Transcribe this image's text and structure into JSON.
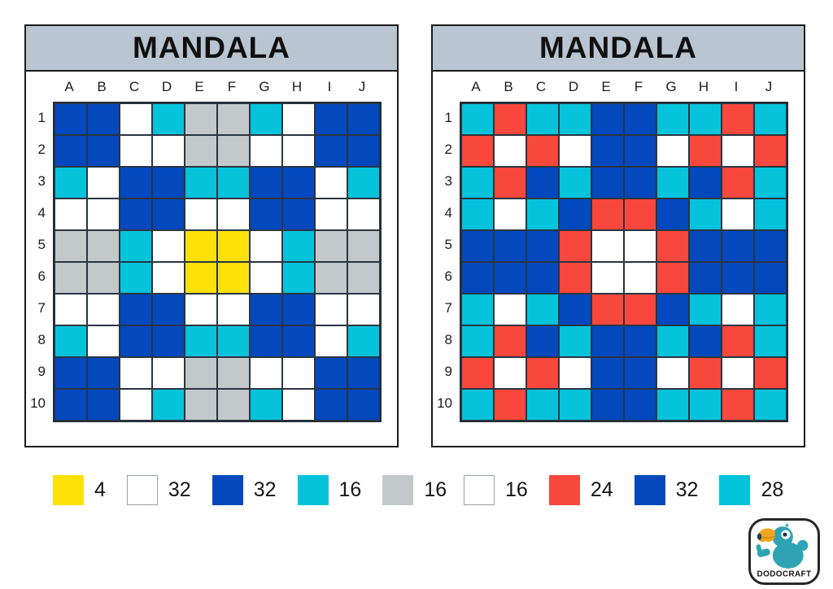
{
  "palette": {
    "B": "#0448be",
    "C": "#06c3dc",
    "W": "#ffffff",
    "G": "#c3c8cb",
    "Y": "#ffe10a",
    "R": "#f8473c"
  },
  "color_names": {
    "B": "dark-blue",
    "C": "cyan",
    "W": "white",
    "G": "gray",
    "Y": "yellow",
    "R": "red"
  },
  "grid_line_color": "#2a3540",
  "title_bar_color": "#b9c5d0",
  "panels": [
    {
      "id": "left",
      "title": "MANDALA",
      "columns": [
        "A",
        "B",
        "C",
        "D",
        "E",
        "F",
        "G",
        "H",
        "I",
        "J"
      ],
      "rows": [
        "1",
        "2",
        "3",
        "4",
        "5",
        "6",
        "7",
        "8",
        "9",
        "10"
      ],
      "grid": [
        [
          "B",
          "B",
          "W",
          "C",
          "G",
          "G",
          "C",
          "W",
          "B",
          "B"
        ],
        [
          "B",
          "B",
          "W",
          "W",
          "G",
          "G",
          "W",
          "W",
          "B",
          "B"
        ],
        [
          "C",
          "W",
          "B",
          "B",
          "C",
          "C",
          "B",
          "B",
          "W",
          "C"
        ],
        [
          "W",
          "W",
          "B",
          "B",
          "W",
          "W",
          "B",
          "B",
          "W",
          "W"
        ],
        [
          "G",
          "G",
          "C",
          "W",
          "Y",
          "Y",
          "W",
          "C",
          "G",
          "G"
        ],
        [
          "G",
          "G",
          "C",
          "W",
          "Y",
          "Y",
          "W",
          "C",
          "G",
          "G"
        ],
        [
          "W",
          "W",
          "B",
          "B",
          "W",
          "W",
          "B",
          "B",
          "W",
          "W"
        ],
        [
          "C",
          "W",
          "B",
          "B",
          "C",
          "C",
          "B",
          "B",
          "W",
          "C"
        ],
        [
          "B",
          "B",
          "W",
          "W",
          "G",
          "G",
          "W",
          "W",
          "B",
          "B"
        ],
        [
          "B",
          "B",
          "W",
          "C",
          "G",
          "G",
          "C",
          "W",
          "B",
          "B"
        ]
      ],
      "legend": [
        {
          "color": "Y",
          "count": "4"
        },
        {
          "color": "W",
          "count": "32"
        },
        {
          "color": "B",
          "count": "32"
        },
        {
          "color": "C",
          "count": "16"
        },
        {
          "color": "G",
          "count": "16"
        }
      ]
    },
    {
      "id": "right",
      "title": "MANDALA",
      "columns": [
        "A",
        "B",
        "C",
        "D",
        "E",
        "F",
        "G",
        "H",
        "I",
        "J"
      ],
      "rows": [
        "1",
        "2",
        "3",
        "4",
        "5",
        "6",
        "7",
        "8",
        "9",
        "10"
      ],
      "grid": [
        [
          "C",
          "R",
          "C",
          "C",
          "B",
          "B",
          "C",
          "C",
          "R",
          "C"
        ],
        [
          "R",
          "W",
          "R",
          "W",
          "B",
          "B",
          "W",
          "R",
          "W",
          "R"
        ],
        [
          "C",
          "R",
          "B",
          "C",
          "B",
          "B",
          "C",
          "B",
          "R",
          "C"
        ],
        [
          "C",
          "W",
          "C",
          "B",
          "R",
          "R",
          "B",
          "C",
          "W",
          "C"
        ],
        [
          "B",
          "B",
          "B",
          "R",
          "W",
          "W",
          "R",
          "B",
          "B",
          "B"
        ],
        [
          "B",
          "B",
          "B",
          "R",
          "W",
          "W",
          "R",
          "B",
          "B",
          "B"
        ],
        [
          "C",
          "W",
          "C",
          "B",
          "R",
          "R",
          "B",
          "C",
          "W",
          "C"
        ],
        [
          "C",
          "R",
          "B",
          "C",
          "B",
          "B",
          "C",
          "B",
          "R",
          "C"
        ],
        [
          "R",
          "W",
          "R",
          "W",
          "B",
          "B",
          "W",
          "R",
          "W",
          "R"
        ],
        [
          "C",
          "R",
          "C",
          "C",
          "B",
          "B",
          "C",
          "C",
          "R",
          "C"
        ]
      ],
      "legend": [
        {
          "color": "W",
          "count": "16"
        },
        {
          "color": "R",
          "count": "24"
        },
        {
          "color": "B",
          "count": "32"
        },
        {
          "color": "C",
          "count": "28"
        }
      ]
    }
  ],
  "logo": {
    "text": "DODOCRAFT",
    "bird_color": "#2ea3b3",
    "beak_color": "#f0a61e",
    "beak_tip_color": "#1e3f5c"
  }
}
